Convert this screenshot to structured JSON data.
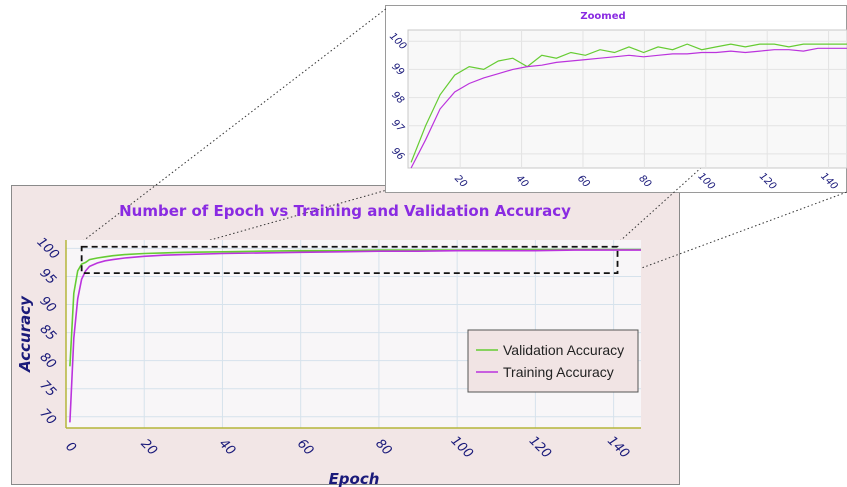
{
  "chart_data": [
    {
      "type": "line",
      "title": "Number of Epoch vs Training and Validation Accuracy",
      "xlabel": "Epoch",
      "ylabel": "Accuracy",
      "xlim": [
        0,
        147
      ],
      "ylim": [
        68,
        101.5
      ],
      "xticks": [
        0,
        20,
        40,
        60,
        80,
        100,
        120,
        140
      ],
      "yticks": [
        70,
        75,
        80,
        85,
        90,
        95,
        100
      ],
      "grid": true,
      "legend_position": "lower-right",
      "x": [
        1,
        2,
        3,
        4,
        5,
        6,
        8,
        10,
        12,
        15,
        20,
        25,
        30,
        40,
        50,
        60,
        70,
        80,
        90,
        100,
        110,
        120,
        130,
        140,
        147
      ],
      "series": [
        {
          "name": "Validation Accuracy",
          "color": "#66cc33",
          "values": [
            79,
            92,
            96,
            97.2,
            97.5,
            98.0,
            98.3,
            98.5,
            98.7,
            98.9,
            99.1,
            99.2,
            99.3,
            99.4,
            99.5,
            99.6,
            99.6,
            99.7,
            99.7,
            99.7,
            99.8,
            99.8,
            99.8,
            99.8,
            99.8
          ]
        },
        {
          "name": "Training Accuracy",
          "color": "#bb33dd",
          "values": [
            69,
            84,
            91,
            94.5,
            96.0,
            96.8,
            97.4,
            97.8,
            98.0,
            98.3,
            98.6,
            98.8,
            98.9,
            99.1,
            99.2,
            99.3,
            99.4,
            99.5,
            99.5,
            99.6,
            99.6,
            99.6,
            99.7,
            99.7,
            99.7
          ]
        }
      ],
      "zoom_box": {
        "x_range": [
          4,
          141
        ],
        "y_range": [
          95.6,
          100.3
        ],
        "style": "dashed"
      }
    },
    {
      "type": "line",
      "title": "Zoomed",
      "xlabel": "",
      "ylabel": "",
      "xlim": [
        3,
        146
      ],
      "ylim": [
        95.5,
        100.4
      ],
      "xticks": [
        20,
        40,
        60,
        80,
        100,
        120,
        140
      ],
      "yticks": [
        96,
        97,
        98,
        99,
        100
      ],
      "grid": true,
      "series": [
        {
          "name": "Validation Accuracy",
          "color": "#66cc33",
          "values": [
            95.7,
            97.0,
            98.1,
            98.8,
            99.1,
            99.0,
            99.3,
            99.4,
            99.1,
            99.5,
            99.4,
            99.6,
            99.5,
            99.7,
            99.6,
            99.8,
            99.6,
            99.8,
            99.7,
            99.9,
            99.7,
            99.8,
            99.9,
            99.8,
            99.9,
            99.9,
            99.8,
            99.9,
            99.9,
            99.9,
            99.9
          ]
        },
        {
          "name": "Training Accuracy",
          "color": "#bb33dd",
          "values": [
            95.5,
            96.5,
            97.6,
            98.2,
            98.5,
            98.7,
            98.85,
            99.0,
            99.1,
            99.15,
            99.25,
            99.3,
            99.35,
            99.4,
            99.45,
            99.5,
            99.45,
            99.5,
            99.55,
            99.55,
            99.6,
            99.6,
            99.65,
            99.6,
            99.65,
            99.7,
            99.7,
            99.65,
            99.75,
            99.75,
            99.75
          ]
        }
      ]
    }
  ]
}
